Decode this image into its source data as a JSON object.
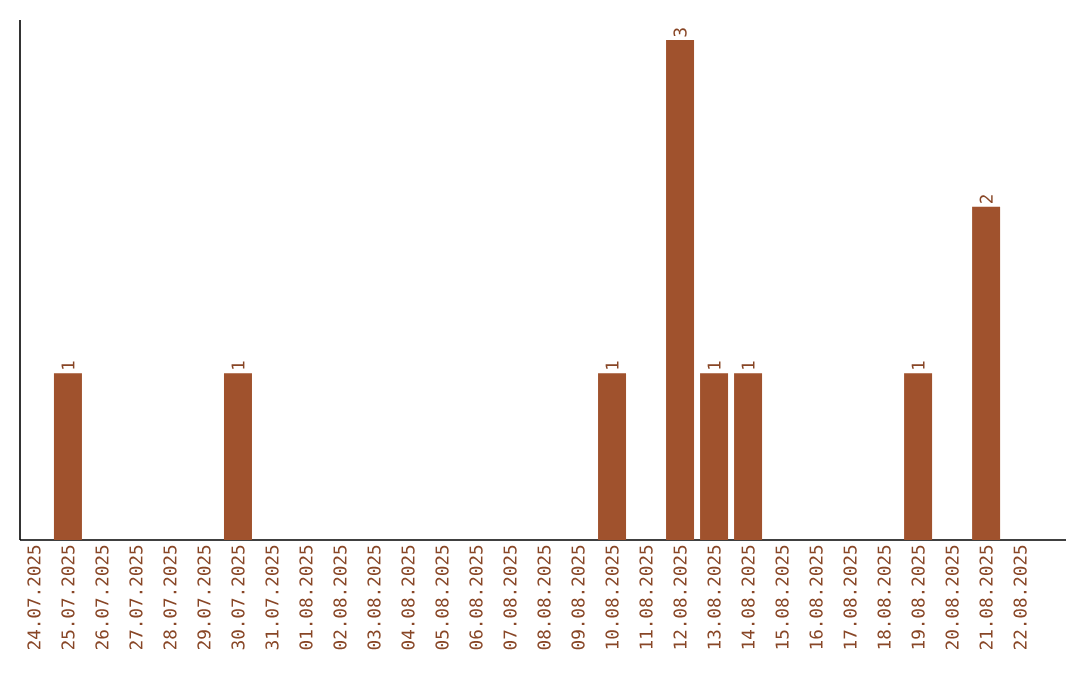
{
  "chart_data": {
    "type": "bar",
    "categories": [
      "24.07.2025",
      "25.07.2025",
      "26.07.2025",
      "27.07.2025",
      "28.07.2025",
      "29.07.2025",
      "30.07.2025",
      "31.07.2025",
      "01.08.2025",
      "02.08.2025",
      "03.08.2025",
      "04.08.2025",
      "05.08.2025",
      "06.08.2025",
      "07.08.2025",
      "08.08.2025",
      "09.08.2025",
      "10.08.2025",
      "11.08.2025",
      "12.08.2025",
      "13.08.2025",
      "14.08.2025",
      "15.08.2025",
      "16.08.2025",
      "17.08.2025",
      "18.08.2025",
      "19.08.2025",
      "20.08.2025",
      "21.08.2025",
      "22.08.2025"
    ],
    "values": [
      0,
      1,
      0,
      0,
      0,
      0,
      1,
      0,
      0,
      0,
      0,
      0,
      0,
      0,
      0,
      0,
      0,
      1,
      0,
      3,
      1,
      1,
      0,
      0,
      0,
      0,
      1,
      0,
      2,
      0
    ],
    "value_labels": [
      null,
      "1",
      null,
      null,
      null,
      null,
      "1",
      null,
      null,
      null,
      null,
      null,
      null,
      null,
      null,
      null,
      null,
      "1",
      null,
      "3",
      "1",
      "1",
      null,
      null,
      null,
      null,
      "1",
      null,
      "2",
      null
    ],
    "color": "#a0522d",
    "tick_labels": "x"
  }
}
